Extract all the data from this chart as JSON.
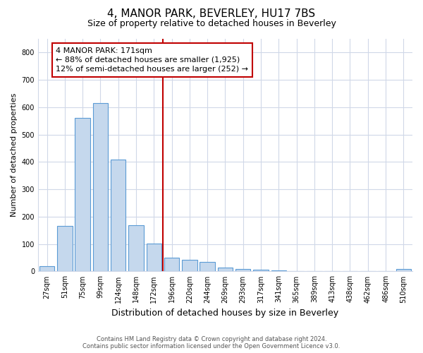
{
  "title": "4, MANOR PARK, BEVERLEY, HU17 7BS",
  "subtitle": "Size of property relative to detached houses in Beverley",
  "xlabel": "Distribution of detached houses by size in Beverley",
  "ylabel": "Number of detached properties",
  "bar_labels": [
    "27sqm",
    "51sqm",
    "75sqm",
    "99sqm",
    "124sqm",
    "148sqm",
    "172sqm",
    "196sqm",
    "220sqm",
    "244sqm",
    "269sqm",
    "293sqm",
    "317sqm",
    "341sqm",
    "365sqm",
    "389sqm",
    "413sqm",
    "438sqm",
    "462sqm",
    "486sqm",
    "510sqm"
  ],
  "bar_values": [
    20,
    165,
    560,
    615,
    410,
    170,
    103,
    50,
    42,
    35,
    13,
    8,
    5,
    3,
    0,
    0,
    0,
    0,
    0,
    0,
    8
  ],
  "bar_color": "#c5d8ed",
  "bar_edge_color": "#5b9bd5",
  "vline_x": 6.5,
  "vline_color": "#c00000",
  "annotation_line1": "4 MANOR PARK: 171sqm",
  "annotation_line2": "← 88% of detached houses are smaller (1,925)",
  "annotation_line3": "12% of semi-detached houses are larger (252) →",
  "annotation_box_facecolor": "#ffffff",
  "annotation_box_edgecolor": "#c00000",
  "ylim": [
    0,
    850
  ],
  "yticks": [
    0,
    100,
    200,
    300,
    400,
    500,
    600,
    700,
    800
  ],
  "bg_color": "#ffffff",
  "plot_bg_color": "#ffffff",
  "grid_color": "#d0d8e8",
  "footer": "Contains HM Land Registry data © Crown copyright and database right 2024.\nContains public sector information licensed under the Open Government Licence v3.0.",
  "title_fontsize": 11,
  "subtitle_fontsize": 9,
  "xlabel_fontsize": 9,
  "ylabel_fontsize": 8,
  "tick_fontsize": 7,
  "annotation_fontsize": 8,
  "footer_fontsize": 6
}
